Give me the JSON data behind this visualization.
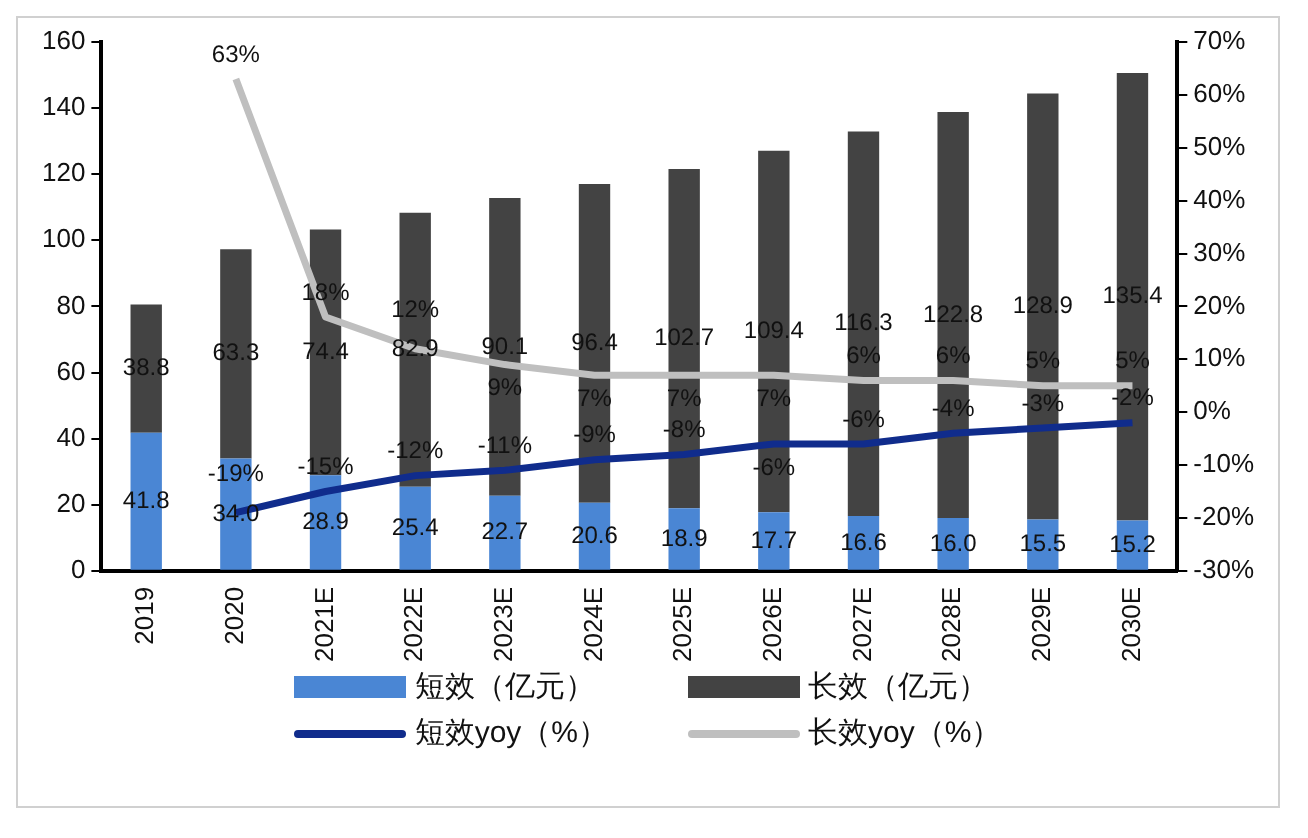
{
  "chart_data": {
    "type": "bar",
    "stacked": true,
    "categories": [
      "2019",
      "2020",
      "2021E",
      "2022E",
      "2023E",
      "2024E",
      "2025E",
      "2026E",
      "2027E",
      "2028E",
      "2029E",
      "2030E"
    ],
    "series": [
      {
        "name": "短效（亿元）",
        "color": "#4a86d4",
        "values": [
          41.8,
          34.0,
          28.9,
          25.4,
          22.7,
          20.6,
          18.9,
          17.7,
          16.6,
          16.0,
          15.5,
          15.2
        ],
        "value_labels": [
          "41.8",
          "34.0",
          "28.9",
          "25.4",
          "22.7",
          "20.6",
          "18.9",
          "17.7",
          "16.6",
          "16.0",
          "15.5",
          "15.2"
        ]
      },
      {
        "name": "长效（亿元）",
        "color": "#434343",
        "values": [
          38.8,
          63.3,
          74.4,
          82.9,
          90.1,
          96.4,
          102.7,
          109.4,
          116.3,
          122.8,
          128.9,
          135.4
        ],
        "value_labels": [
          "38.8",
          "63.3",
          "74.4",
          "82.9",
          "90.1",
          "96.4",
          "102.7",
          "109.4",
          "116.3",
          "122.8",
          "128.9",
          "135.4"
        ]
      },
      {
        "name": "短效yoy（%）",
        "type": "line",
        "axis": "y2",
        "color": "#102c8c",
        "values": [
          null,
          -19,
          -15,
          -12,
          -11,
          -9,
          -8,
          -6,
          -6,
          -4,
          -3,
          -2
        ],
        "value_labels": [
          null,
          "-19%",
          "-15%",
          "-12%",
          "-11%",
          "-9%",
          "-8%",
          "-6%",
          "-6%",
          "-4%",
          "-3%",
          "-2%"
        ]
      },
      {
        "name": "长效yoy（%）",
        "type": "line",
        "axis": "y2",
        "color": "#bfbfbf",
        "values": [
          null,
          63,
          18,
          12,
          9,
          7,
          7,
          7,
          6,
          6,
          5,
          5
        ],
        "value_labels": [
          null,
          "63%",
          "18%",
          "12%",
          "9%",
          "7%",
          "7%",
          "7%",
          "6%",
          "6%",
          "5%",
          "5%"
        ]
      }
    ],
    "ylim": [
      0,
      160
    ],
    "yticks": [
      0,
      20,
      40,
      60,
      80,
      100,
      120,
      140,
      160
    ],
    "y2lim": [
      -30,
      70
    ],
    "y2ticks": [
      {
        "value": -30,
        "label": "-30%"
      },
      {
        "value": -20,
        "label": "-20%"
      },
      {
        "value": -10,
        "label": "-10%"
      },
      {
        "value": 0,
        "label": "0%"
      },
      {
        "value": 10,
        "label": "10%"
      },
      {
        "value": 20,
        "label": "20%"
      },
      {
        "value": 30,
        "label": "30%"
      },
      {
        "value": 40,
        "label": "40%"
      },
      {
        "value": 50,
        "label": "50%"
      },
      {
        "value": 60,
        "label": "60%"
      },
      {
        "value": 70,
        "label": "70%"
      }
    ],
    "grid": false,
    "legend": "bottom",
    "marker": "none",
    "line_style": "solid"
  }
}
